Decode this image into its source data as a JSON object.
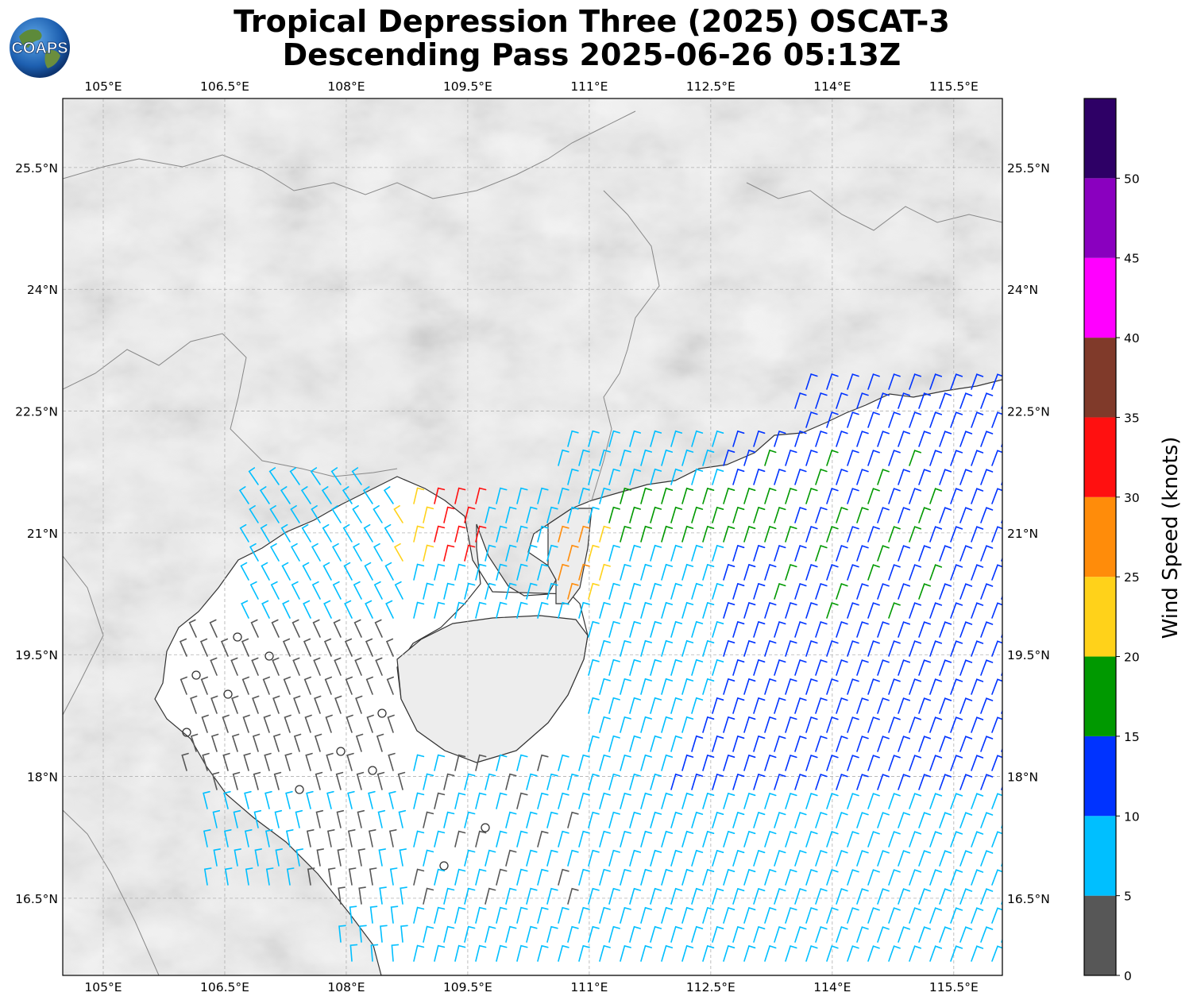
{
  "title": {
    "line1": "Tropical Depression Three (2025) OSCAT-3",
    "line2": "Descending Pass 2025-06-26 05:13Z"
  },
  "logo": {
    "text": "COAPS"
  },
  "map": {
    "lon_range": [
      104.5,
      116.1
    ],
    "lat_range": [
      15.55,
      26.35
    ],
    "lon_ticks": [
      {
        "value": 105.0,
        "label": "105°E"
      },
      {
        "value": 106.5,
        "label": "106.5°E"
      },
      {
        "value": 108.0,
        "label": "108°E"
      },
      {
        "value": 109.5,
        "label": "109.5°E"
      },
      {
        "value": 111.0,
        "label": "111°E"
      },
      {
        "value": 112.5,
        "label": "112.5°E"
      },
      {
        "value": 114.0,
        "label": "114°E"
      },
      {
        "value": 115.5,
        "label": "115.5°E"
      }
    ],
    "lat_ticks": [
      {
        "value": 25.5,
        "label": "25.5°N"
      },
      {
        "value": 24.0,
        "label": "24°N"
      },
      {
        "value": 22.5,
        "label": "22.5°N"
      },
      {
        "value": 21.0,
        "label": "21°N"
      },
      {
        "value": 19.5,
        "label": "19.5°N"
      },
      {
        "value": 18.0,
        "label": "18°N"
      },
      {
        "value": 16.5,
        "label": "16.5°N"
      }
    ],
    "grid": true,
    "land_color": "#ebebeb",
    "sea_color": "#ffffff"
  },
  "colorbar": {
    "label": "Wind Speed (knots)",
    "bounds": [
      0,
      5,
      10,
      15,
      20,
      25,
      30,
      35,
      40,
      45,
      50,
      55
    ],
    "tick_labels": [
      "0",
      "5",
      "10",
      "15",
      "20",
      "25",
      "30",
      "35",
      "40",
      "45",
      "50"
    ],
    "colors": [
      "#575757",
      "#00bfff",
      "#0033ff",
      "#009900",
      "#ffd21a",
      "#ff8c0a",
      "#ff1010",
      "#803a2a",
      "#ff00ff",
      "#8a00bf",
      "#2e0066"
    ]
  },
  "wind_regions": [
    {
      "speed_class": "0-5 knots",
      "color": "#575757",
      "area": "Gulf of Tonkin and waters east of Vietnam"
    },
    {
      "speed_class": "5-10 knots",
      "color": "#00bfff",
      "area": "western Gulf of Tonkin and south of Hainan"
    },
    {
      "speed_class": "10-15 knots",
      "color": "#0033ff",
      "area": "east of Hainan and south of Guangdong"
    },
    {
      "speed_class": "15-20 knots",
      "color": "#009900",
      "area": "patches off Guangdong coast"
    },
    {
      "speed_class": "20-25 knots",
      "color": "#ffd21a",
      "area": "Leizhou peninsula and northern Gulf of Tonkin"
    },
    {
      "speed_class": "25-30 knots",
      "color": "#ff8c0a",
      "area": "near Zhanjiang and Qiongzhou Strait"
    },
    {
      "speed_class": "30-35 knots",
      "color": "#ff1010",
      "area": "northern Gulf of Tonkin"
    }
  ]
}
